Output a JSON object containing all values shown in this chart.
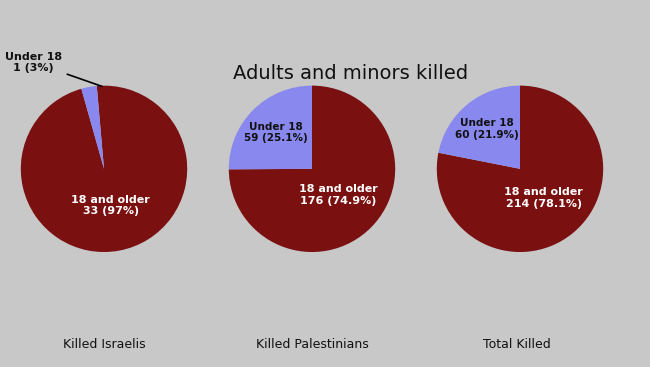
{
  "title": "Adults and minors killed",
  "title_box_color": "#c8c8c8",
  "background_color_top": "#c8c8c8",
  "background_color": "#ffffff",
  "pie_dark_red": "#7a1010",
  "pie_blue": "#8888ee",
  "charts": [
    {
      "label": "Killed Israelis",
      "slices": [
        97,
        3
      ],
      "slice_labels": [
        "18 and older\n33 (97%)",
        "Under 18\n1 (3%)"
      ],
      "colors": [
        "#7a1010",
        "#8888ee"
      ],
      "annotation_outside": true
    },
    {
      "label": "Killed Palestinians",
      "slices": [
        74.9,
        25.1
      ],
      "slice_labels": [
        "18 and older\n176 (74.9%)",
        "Under 18\n59 (25.1%)"
      ],
      "colors": [
        "#7a1010",
        "#8888ee"
      ],
      "annotation_outside": false
    },
    {
      "label": "Total Killed",
      "slices": [
        78.1,
        21.9
      ],
      "slice_labels": [
        "18 and older\n214 (78.1%)",
        "Under 18\n60 (21.9%)"
      ],
      "colors": [
        "#7a1010",
        "#8888ee"
      ],
      "annotation_outside": false
    }
  ],
  "font_color_dark": "#111111",
  "font_color_light": "#ffffff",
  "label_fontsize": 9,
  "inner_label_fontsize": 8,
  "title_fontsize": 14
}
